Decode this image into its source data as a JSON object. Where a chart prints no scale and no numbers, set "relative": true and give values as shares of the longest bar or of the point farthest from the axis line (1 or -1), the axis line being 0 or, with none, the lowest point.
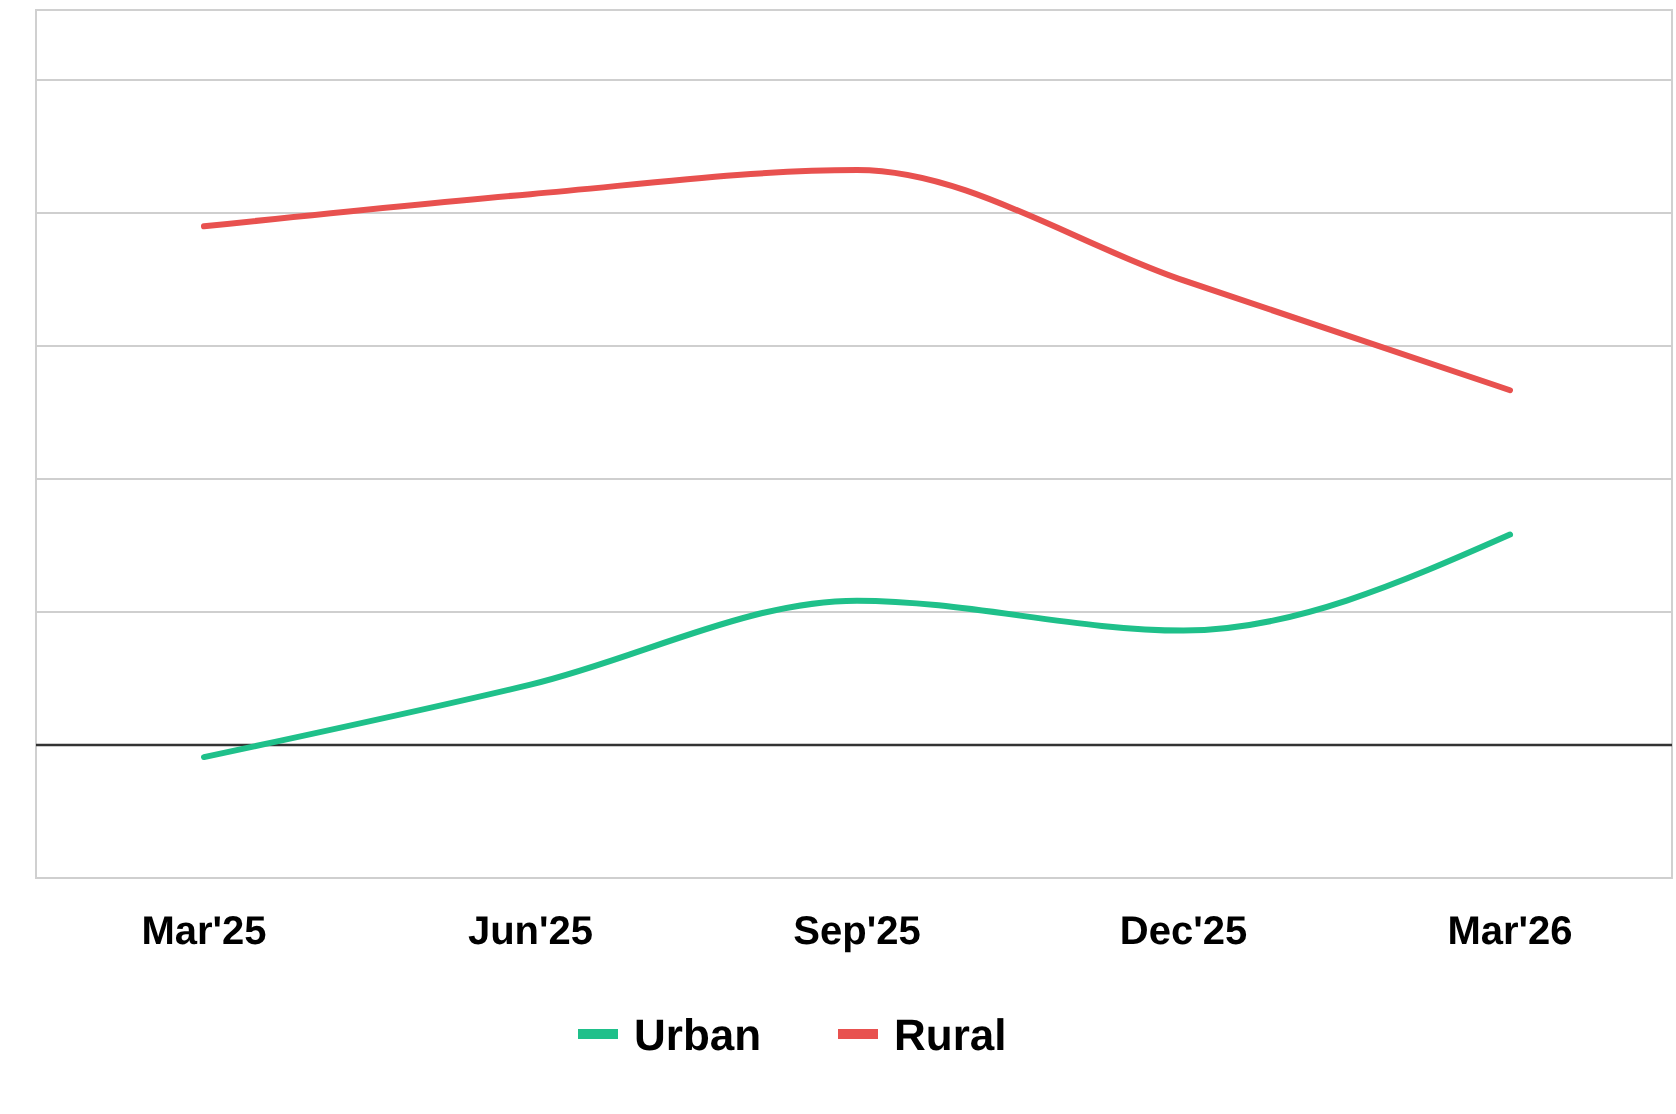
{
  "chart_data": {
    "type": "line",
    "relative": true,
    "categories": [
      "Mar'25",
      "Jun'25",
      "Sep'25",
      "Dec'25",
      "Mar'26"
    ],
    "grid": true,
    "legend": "bottom",
    "series": [
      {
        "name": "Urban",
        "color": "#1fc08a",
        "values": [
          -0.021,
          0.105,
          0.251,
          0.199,
          0.366
        ]
      },
      {
        "name": "Rural",
        "color": "#e8514f",
        "values": [
          0.902,
          0.958,
          1,
          0.808,
          0.617
        ]
      }
    ]
  }
}
